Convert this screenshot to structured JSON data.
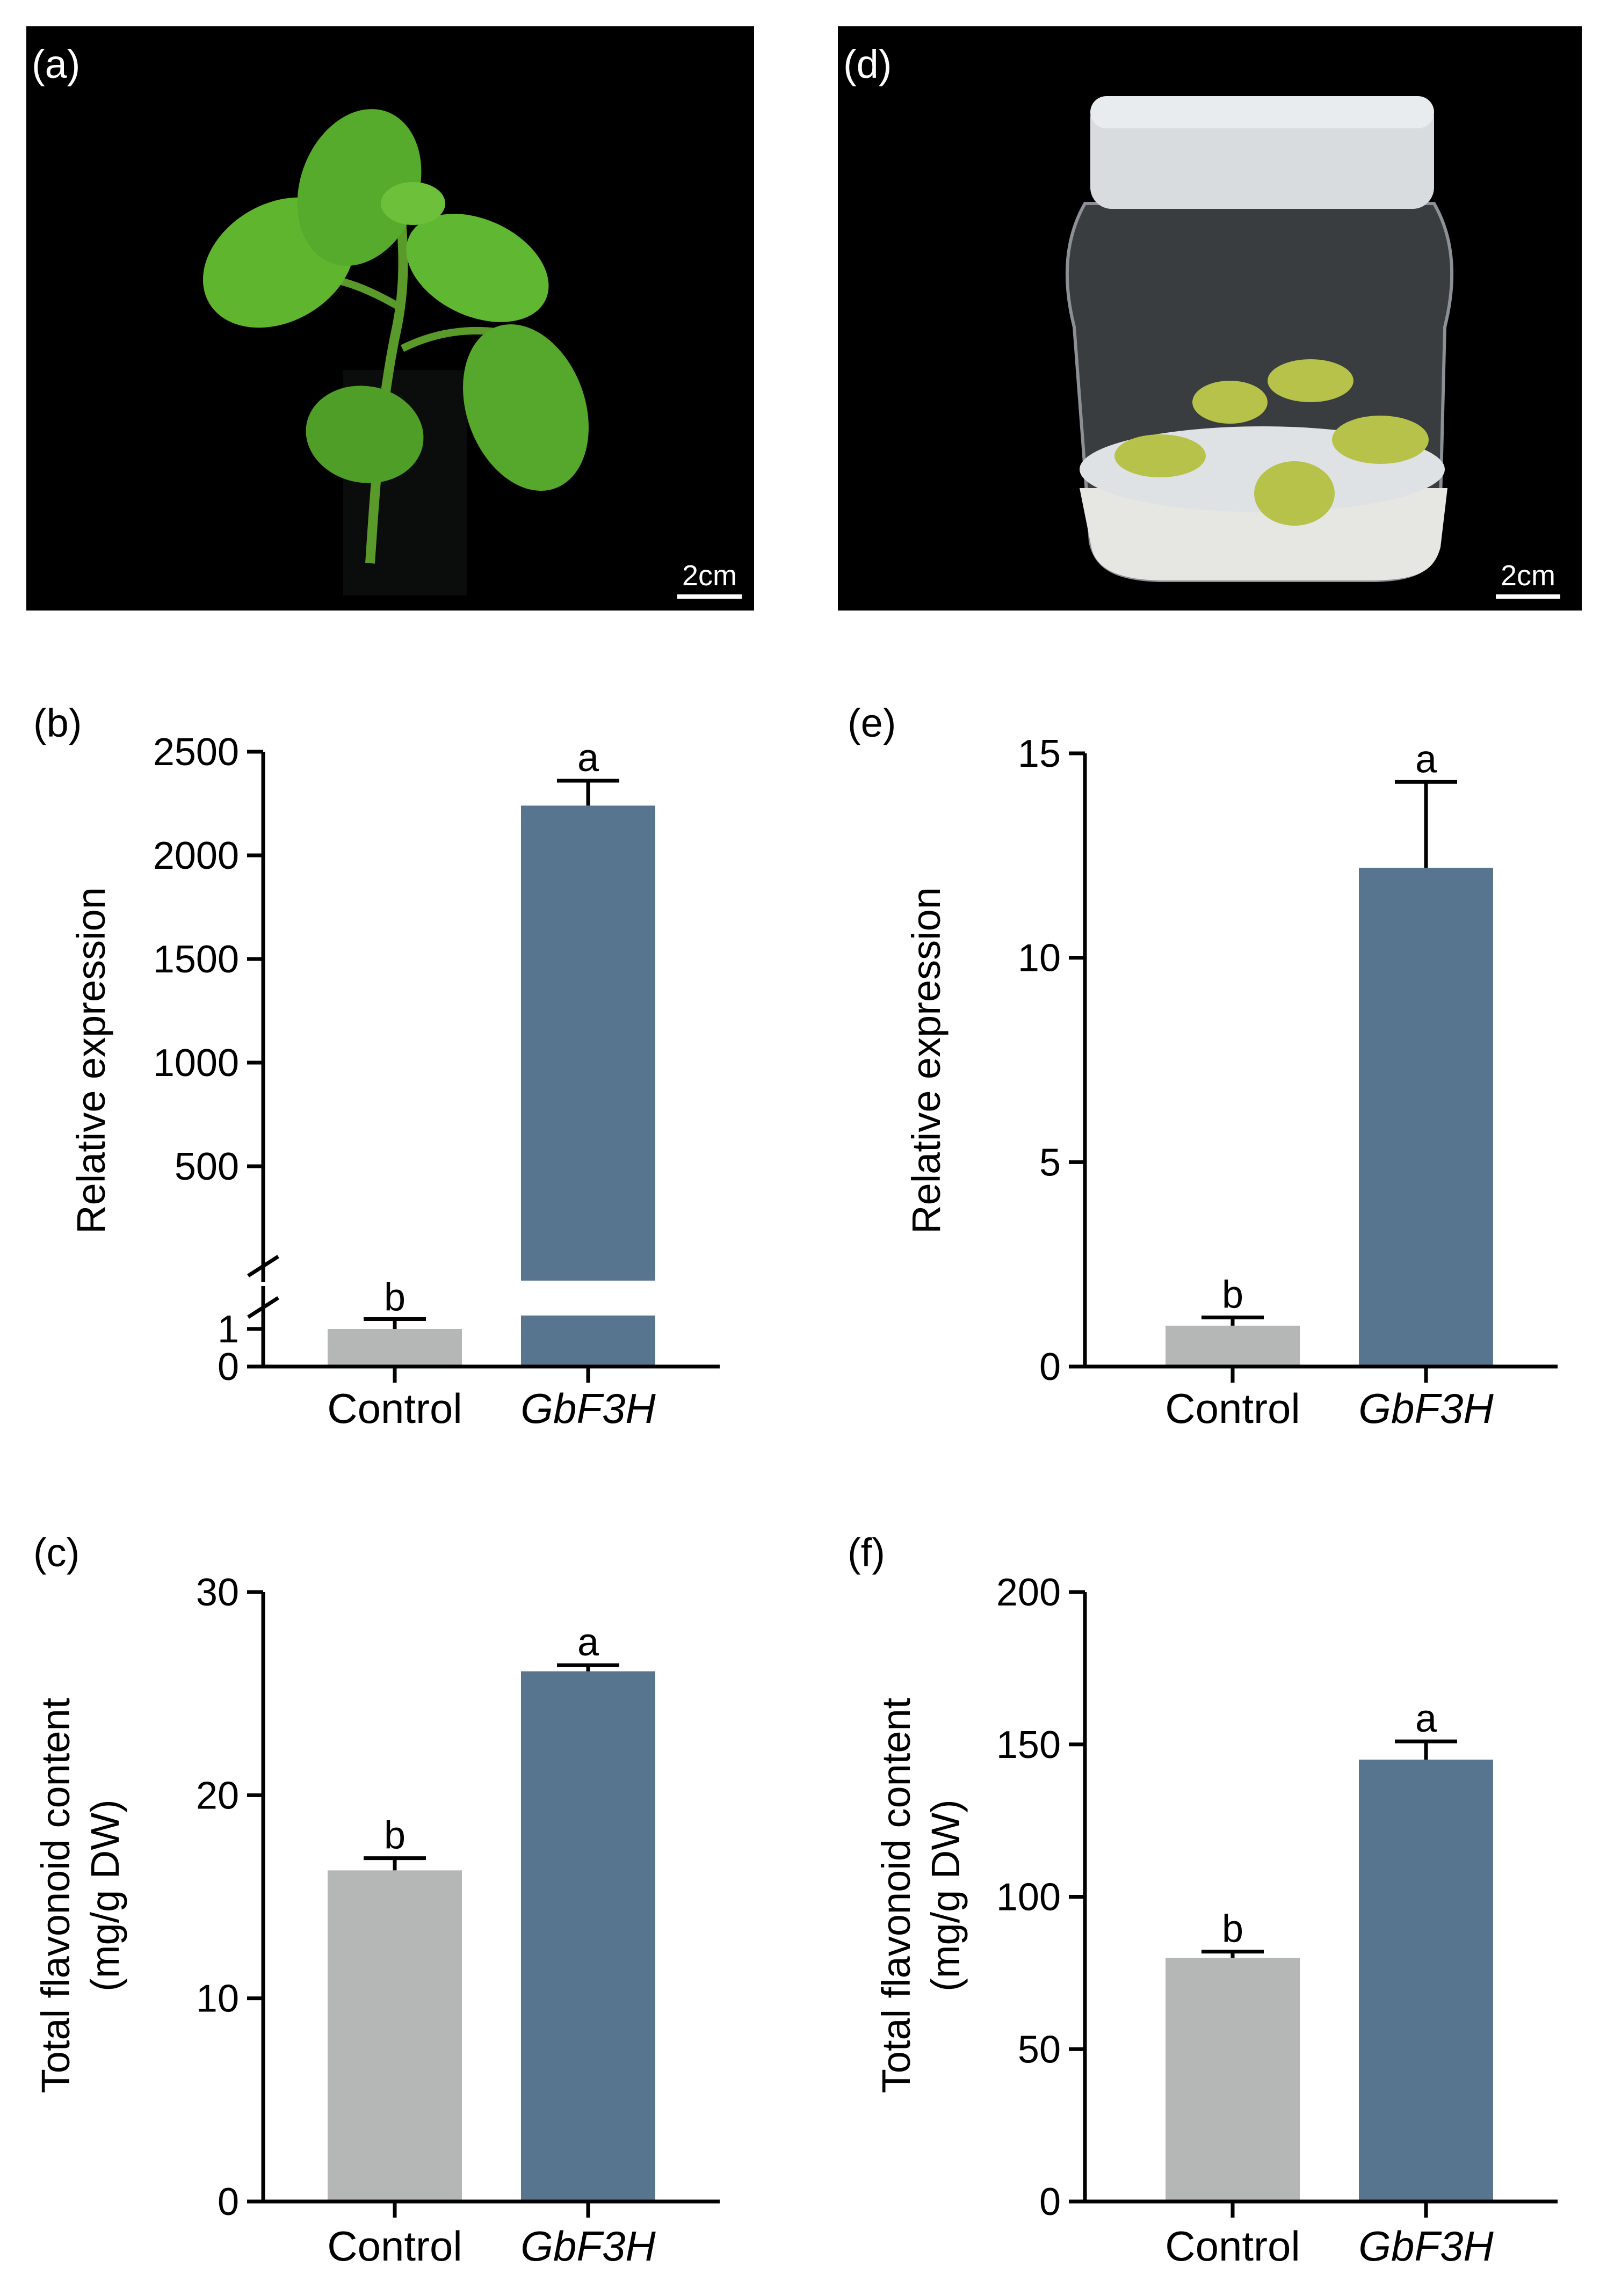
{
  "panels": {
    "a": {
      "label": "(a)",
      "scalebar": "2cm"
    },
    "d": {
      "label": "(d)",
      "scalebar": "2cm"
    },
    "b": {
      "label": "(b)"
    },
    "c": {
      "label": "(c)"
    },
    "e": {
      "label": "(e)"
    },
    "f": {
      "label": "(f)"
    }
  },
  "colors": {
    "control": "#b5b7b6",
    "gbf3h": "#587590",
    "axis": "#000000"
  },
  "chart_data": [
    {
      "id": "b",
      "type": "bar",
      "categories": [
        "Control",
        "GbF3H"
      ],
      "italic_categories": [
        false,
        true
      ],
      "values": [
        1.0,
        2240
      ],
      "errors": [
        0.15,
        120
      ],
      "letters": [
        "b",
        "a"
      ],
      "ylabel": "Relative expression",
      "broken_axis": true,
      "ylim_lower": [
        0,
        1.5
      ],
      "ylim_upper": [
        0,
        2500
      ],
      "yticks_lower": [
        0,
        1
      ],
      "yticks_upper": [
        500,
        1000,
        1500,
        2000,
        2500
      ]
    },
    {
      "id": "e",
      "type": "bar",
      "categories": [
        "Control",
        "GbF3H"
      ],
      "italic_categories": [
        false,
        true
      ],
      "values": [
        1.0,
        12.2
      ],
      "errors": [
        0.2,
        2.1
      ],
      "letters": [
        "b",
        "a"
      ],
      "ylabel": "Relative expression",
      "ylim": [
        0,
        15
      ],
      "yticks": [
        0,
        5,
        10,
        15
      ]
    },
    {
      "id": "c",
      "type": "bar",
      "categories": [
        "Control",
        "GbF3H"
      ],
      "italic_categories": [
        false,
        true
      ],
      "values": [
        16.3,
        26.1
      ],
      "errors": [
        0.6,
        0.3
      ],
      "letters": [
        "b",
        "a"
      ],
      "ylabel": [
        "Total flavonoid content",
        "(mg/g DW)"
      ],
      "ylim": [
        0,
        30
      ],
      "yticks": [
        0,
        10,
        20,
        30
      ]
    },
    {
      "id": "f",
      "type": "bar",
      "categories": [
        "Control",
        "GbF3H"
      ],
      "italic_categories": [
        false,
        true
      ],
      "values": [
        80,
        145
      ],
      "errors": [
        2,
        6
      ],
      "letters": [
        "b",
        "a"
      ],
      "ylabel": [
        "Total flavonoid content",
        "(mg/g DW)"
      ],
      "ylim": [
        0,
        200
      ],
      "yticks": [
        0,
        50,
        100,
        150,
        200
      ]
    }
  ]
}
